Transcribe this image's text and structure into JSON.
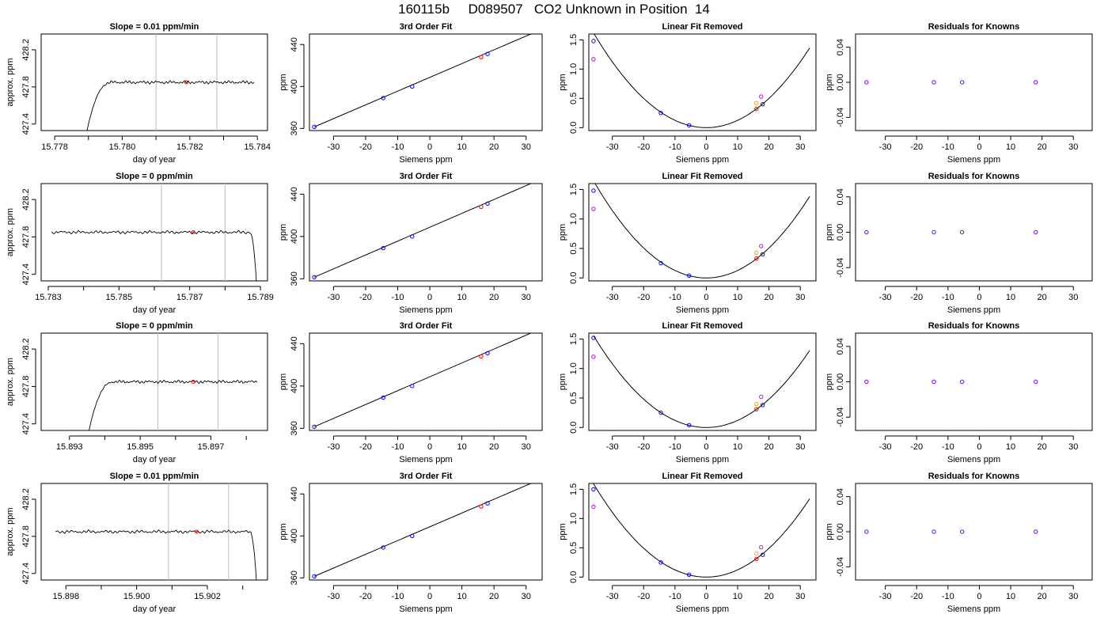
{
  "title": "160115b     D089507   CO2 Unknown in Position  14",
  "chart_data": [
    {
      "type": "line",
      "row": 1,
      "col": 1,
      "title": "Slope =  0.01  ppm/min",
      "xlabel": "day of year",
      "ylabel": "approx. ppm",
      "xlim": [
        15.7776,
        15.7843
      ],
      "ylim": [
        427.33,
        428.37
      ],
      "xticks": [
        15.778,
        15.78,
        15.782,
        15.784
      ],
      "xtick_labels": [
        "15.778",
        "15.780",
        "15.782",
        "15.784"
      ],
      "yticks": [
        427.4,
        427.8,
        428.2
      ],
      "ytick_labels": [
        "427.4",
        "427.8",
        "428.2"
      ],
      "vlines": [
        15.781,
        15.7828
      ],
      "mark": {
        "x": 15.7819,
        "y": 427.85,
        "color": "#ff0000"
      },
      "trace": {
        "x0": 15.7789,
        "x1": 15.7839,
        "rise": "start",
        "base": 427.85
      }
    },
    {
      "type": "line",
      "row": 2,
      "col": 1,
      "title": "Slope =  0  ppm/min",
      "xlabel": "day of year",
      "ylabel": "approx. ppm",
      "xlim": [
        15.7828,
        15.7892
      ],
      "ylim": [
        427.33,
        428.37
      ],
      "xticks": [
        15.783,
        15.785,
        15.787,
        15.789
      ],
      "xtick_labels": [
        "15.783",
        "15.785",
        "15.787",
        "15.789"
      ],
      "yticks": [
        427.4,
        427.8,
        428.2
      ],
      "ytick_labels": [
        "427.4",
        "427.8",
        "428.2"
      ],
      "vlines": [
        15.7862,
        15.788
      ],
      "mark": {
        "x": 15.7871,
        "y": 427.85,
        "color": "#ff0000"
      },
      "trace": {
        "x0": 15.7831,
        "x1": 15.7889,
        "rise": "end",
        "base": 427.85
      }
    },
    {
      "type": "line",
      "row": 3,
      "col": 1,
      "title": "Slope =  0  ppm/min",
      "xlabel": "day of year",
      "ylabel": "approx. ppm",
      "xlim": [
        15.8922,
        15.8986
      ],
      "ylim": [
        427.33,
        428.37
      ],
      "xticks": [
        15.893,
        15.895,
        15.897
      ],
      "xtick_labels": [
        "15.893",
        "15.895",
        "15.897"
      ],
      "yticks": [
        427.4,
        427.8,
        428.2
      ],
      "ytick_labels": [
        "427.4",
        "427.8",
        "428.2"
      ],
      "vlines": [
        15.8955,
        15.8972
      ],
      "mark": {
        "x": 15.8965,
        "y": 427.85,
        "color": "#ff0000"
      },
      "trace": {
        "x0": 15.8935,
        "x1": 15.8983,
        "rise": "start",
        "base": 427.85
      }
    },
    {
      "type": "line",
      "row": 4,
      "col": 1,
      "title": "Slope =  0.01  ppm/min",
      "xlabel": "day of year",
      "ylabel": "approx. ppm",
      "xlim": [
        15.8973,
        15.9037
      ],
      "ylim": [
        427.33,
        428.37
      ],
      "xticks": [
        15.898,
        15.9,
        15.902
      ],
      "xtick_labels": [
        "15.898",
        "15.900",
        "15.902"
      ],
      "yticks": [
        427.4,
        427.8,
        428.2
      ],
      "ytick_labels": [
        "427.4",
        "427.8",
        "428.2"
      ],
      "vlines": [
        15.9009,
        15.9026
      ],
      "mark": {
        "x": 15.9017,
        "y": 427.85,
        "color": "#ff0000"
      },
      "trace": {
        "x0": 15.8977,
        "x1": 15.9034,
        "rise": "end",
        "base": 427.85
      }
    },
    {
      "type": "line",
      "row": 1,
      "col": 2,
      "title": "3rd Order Fit",
      "xlabel": "Siemens ppm",
      "ylabel": "ppm",
      "xlim": [
        -37.5,
        35
      ],
      "ylim": [
        358,
        450
      ],
      "xticks": [
        -30,
        -20,
        -10,
        0,
        10,
        20,
        30
      ],
      "xtick_labels": [
        "-30",
        "-20",
        "-10",
        "0",
        "10",
        "20",
        "30"
      ],
      "yticks": [
        360,
        400,
        440
      ],
      "ytick_labels": [
        "360",
        "400",
        "440"
      ],
      "line": {
        "x0": -36,
        "y0": 361.5,
        "x1": 33,
        "y1": 452
      },
      "points": [
        {
          "x": -36,
          "y": 361.5,
          "color": "#0000ff"
        },
        {
          "x": -14.5,
          "y": 389,
          "color": "#0000ff"
        },
        {
          "x": -5.5,
          "y": 400,
          "color": "#0000ff"
        },
        {
          "x": 16,
          "y": 428,
          "color": "#ff0000"
        },
        {
          "x": 18,
          "y": 431,
          "color": "#0000ff"
        }
      ]
    },
    {
      "type": "line",
      "row": 2,
      "col": 2,
      "title": "3rd Order Fit",
      "xlabel": "Siemens ppm",
      "ylabel": "ppm",
      "xlim": [
        -37.5,
        35
      ],
      "ylim": [
        358,
        450
      ],
      "xticks": [
        -30,
        -20,
        -10,
        0,
        10,
        20,
        30
      ],
      "xtick_labels": [
        "-30",
        "-20",
        "-10",
        "0",
        "10",
        "20",
        "30"
      ],
      "yticks": [
        360,
        400,
        440
      ],
      "ytick_labels": [
        "360",
        "400",
        "440"
      ],
      "line": {
        "x0": -36,
        "y0": 361.5,
        "x1": 33,
        "y1": 452
      },
      "points": [
        {
          "x": -36,
          "y": 361.5,
          "color": "#0000ff"
        },
        {
          "x": -14.5,
          "y": 389,
          "color": "#0000ff"
        },
        {
          "x": -5.5,
          "y": 400,
          "color": "#0000ff"
        },
        {
          "x": 16,
          "y": 428,
          "color": "#ff0000"
        },
        {
          "x": 18,
          "y": 431,
          "color": "#0000ff"
        }
      ]
    },
    {
      "type": "line",
      "row": 3,
      "col": 2,
      "title": "3rd Order Fit",
      "xlabel": "Siemens ppm",
      "ylabel": "ppm",
      "xlim": [
        -37.5,
        35
      ],
      "ylim": [
        358,
        450
      ],
      "xticks": [
        -30,
        -20,
        -10,
        0,
        10,
        20,
        30
      ],
      "xtick_labels": [
        "-30",
        "-20",
        "-10",
        "0",
        "10",
        "20",
        "30"
      ],
      "yticks": [
        360,
        400,
        440
      ],
      "ytick_labels": [
        "360",
        "400",
        "440"
      ],
      "line": {
        "x0": -36,
        "y0": 361.5,
        "x1": 33,
        "y1": 452
      },
      "points": [
        {
          "x": -36,
          "y": 361.5,
          "color": "#0000ff"
        },
        {
          "x": -14.5,
          "y": 389,
          "color": "#0000ff"
        },
        {
          "x": -5.5,
          "y": 400,
          "color": "#0000ff"
        },
        {
          "x": 16,
          "y": 428,
          "color": "#ff0000"
        },
        {
          "x": 18,
          "y": 431,
          "color": "#0000ff"
        }
      ]
    },
    {
      "type": "line",
      "row": 4,
      "col": 2,
      "title": "3rd Order Fit",
      "xlabel": "Siemens ppm",
      "ylabel": "ppm",
      "xlim": [
        -37.5,
        35
      ],
      "ylim": [
        358,
        450
      ],
      "xticks": [
        -30,
        -20,
        -10,
        0,
        10,
        20,
        30
      ],
      "xtick_labels": [
        "-30",
        "-20",
        "-10",
        "0",
        "10",
        "20",
        "30"
      ],
      "yticks": [
        360,
        400,
        440
      ],
      "ytick_labels": [
        "360",
        "400",
        "440"
      ],
      "line": {
        "x0": -36,
        "y0": 361.5,
        "x1": 33,
        "y1": 452
      },
      "points": [
        {
          "x": -36,
          "y": 361.5,
          "color": "#0000ff"
        },
        {
          "x": -14.5,
          "y": 389,
          "color": "#0000ff"
        },
        {
          "x": -5.5,
          "y": 400,
          "color": "#0000ff"
        },
        {
          "x": 16,
          "y": 428,
          "color": "#ff0000"
        },
        {
          "x": 18,
          "y": 431,
          "color": "#0000ff"
        }
      ]
    },
    {
      "type": "line",
      "row": 1,
      "col": 3,
      "title": "Linear Fit Removed",
      "xlabel": "Siemens ppm",
      "ylabel": "ppm",
      "xlim": [
        -37.5,
        35
      ],
      "ylim": [
        -0.05,
        1.6
      ],
      "xticks": [
        -30,
        -20,
        -10,
        0,
        10,
        20,
        30
      ],
      "xtick_labels": [
        "-30",
        "-20",
        "-10",
        "0",
        "10",
        "20",
        "30"
      ],
      "yticks": [
        0,
        0.5,
        1,
        1.5
      ],
      "ytick_labels": [
        "0.0",
        "0.5",
        "1.0",
        "1.5"
      ],
      "curve": {
        "coef": 0.00125,
        "x0": -36,
        "x1": 33
      },
      "points": [
        {
          "x": -36,
          "y": 1.48,
          "color": "#0000ff"
        },
        {
          "x": -36,
          "y": 1.17,
          "color": "#cc00ff"
        },
        {
          "x": -14.5,
          "y": 0.25,
          "color": "#0000ff"
        },
        {
          "x": -5.5,
          "y": 0.04,
          "color": "#0000ff"
        },
        {
          "x": 16,
          "y": 0.42,
          "color": "#ffa500"
        },
        {
          "x": 16,
          "y": 0.32,
          "color": "#ff0000"
        },
        {
          "x": 17.5,
          "y": 0.53,
          "color": "#cc00ff"
        },
        {
          "x": 18,
          "y": 0.4,
          "color": "#0000ff"
        }
      ]
    },
    {
      "type": "line",
      "row": 2,
      "col": 3,
      "title": "Linear Fit Removed",
      "xlabel": "Siemens ppm",
      "ylabel": "ppm",
      "xlim": [
        -37.5,
        35
      ],
      "ylim": [
        -0.05,
        1.6
      ],
      "xticks": [
        -30,
        -20,
        -10,
        0,
        10,
        20,
        30
      ],
      "xtick_labels": [
        "-30",
        "-20",
        "-10",
        "0",
        "10",
        "20",
        "30"
      ],
      "yticks": [
        0,
        0.5,
        1,
        1.5
      ],
      "ytick_labels": [
        "0.0",
        "0.5",
        "1.0",
        "1.5"
      ],
      "curve": {
        "coef": 0.00127,
        "x0": -36,
        "x1": 33
      },
      "points": [
        {
          "x": -36,
          "y": 1.48,
          "color": "#0000ff"
        },
        {
          "x": -36,
          "y": 1.17,
          "color": "#cc00ff"
        },
        {
          "x": -14.5,
          "y": 0.25,
          "color": "#0000ff"
        },
        {
          "x": -5.5,
          "y": 0.04,
          "color": "#0000ff"
        },
        {
          "x": 16,
          "y": 0.43,
          "color": "#ffa500"
        },
        {
          "x": 16,
          "y": 0.33,
          "color": "#ff0000"
        },
        {
          "x": 17.5,
          "y": 0.54,
          "color": "#cc00ff"
        },
        {
          "x": 18,
          "y": 0.4,
          "color": "#0000ff"
        }
      ]
    },
    {
      "type": "line",
      "row": 3,
      "col": 3,
      "title": "Linear Fit Removed",
      "xlabel": "Siemens ppm",
      "ylabel": "ppm",
      "xlim": [
        -37.5,
        35
      ],
      "ylim": [
        -0.05,
        1.6
      ],
      "xticks": [
        -30,
        -20,
        -10,
        0,
        10,
        20,
        30
      ],
      "xtick_labels": [
        "-30",
        "-20",
        "-10",
        "0",
        "10",
        "20",
        "30"
      ],
      "yticks": [
        0,
        0.5,
        1,
        1.5
      ],
      "ytick_labels": [
        "0.0",
        "0.5",
        "1.0",
        "1.5"
      ],
      "curve": {
        "coef": 0.0012,
        "x0": -36,
        "x1": 33
      },
      "points": [
        {
          "x": -36,
          "y": 1.52,
          "color": "#0000ff"
        },
        {
          "x": -36,
          "y": 1.2,
          "color": "#cc00ff"
        },
        {
          "x": -14.5,
          "y": 0.25,
          "color": "#0000ff"
        },
        {
          "x": -5.5,
          "y": 0.04,
          "color": "#0000ff"
        },
        {
          "x": 16,
          "y": 0.4,
          "color": "#ffa500"
        },
        {
          "x": 16,
          "y": 0.31,
          "color": "#ff0000"
        },
        {
          "x": 17.5,
          "y": 0.52,
          "color": "#cc00ff"
        },
        {
          "x": 18,
          "y": 0.38,
          "color": "#0000ff"
        }
      ]
    },
    {
      "type": "line",
      "row": 4,
      "col": 3,
      "title": "Linear Fit Removed",
      "xlabel": "Siemens ppm",
      "ylabel": "ppm",
      "xlim": [
        -37.5,
        35
      ],
      "ylim": [
        -0.05,
        1.6
      ],
      "xticks": [
        -30,
        -20,
        -10,
        0,
        10,
        20,
        30
      ],
      "xtick_labels": [
        "-30",
        "-20",
        "-10",
        "0",
        "10",
        "20",
        "30"
      ],
      "yticks": [
        0,
        0.5,
        1,
        1.5
      ],
      "ytick_labels": [
        "0.0",
        "0.5",
        "1.0",
        "1.5"
      ],
      "curve": {
        "coef": 0.00123,
        "x0": -36,
        "x1": 33
      },
      "points": [
        {
          "x": -36,
          "y": 1.5,
          "color": "#0000ff"
        },
        {
          "x": -36,
          "y": 1.2,
          "color": "#cc00ff"
        },
        {
          "x": -14.5,
          "y": 0.25,
          "color": "#0000ff"
        },
        {
          "x": -5.5,
          "y": 0.04,
          "color": "#0000ff"
        },
        {
          "x": 16,
          "y": 0.4,
          "color": "#ffa500"
        },
        {
          "x": 16,
          "y": 0.31,
          "color": "#ff0000"
        },
        {
          "x": 17.5,
          "y": 0.51,
          "color": "#cc00ff"
        },
        {
          "x": 18,
          "y": 0.38,
          "color": "#0000ff"
        }
      ]
    },
    {
      "type": "scatter",
      "row": 1,
      "col": 4,
      "title": "Residuals for Knowns",
      "xlabel": "Siemens ppm",
      "ylabel": "ppm",
      "xlim": [
        -39.5,
        36
      ],
      "ylim": [
        -0.055,
        0.055
      ],
      "xticks": [
        -30,
        -20,
        -10,
        0,
        10,
        20,
        30
      ],
      "xtick_labels": [
        "-30",
        "-20",
        "-10",
        "0",
        "10",
        "20",
        "30"
      ],
      "yticks": [
        -0.04,
        0,
        0.04
      ],
      "ytick_labels": [
        "-0.04",
        "0.00",
        "0.04"
      ],
      "points": [
        {
          "x": -36,
          "y": 0,
          "color": "#6600ff"
        },
        {
          "x": -14.5,
          "y": 0,
          "color": "#6600ff"
        },
        {
          "x": -5.5,
          "y": 0,
          "color": "#6600ff"
        },
        {
          "x": 18,
          "y": 0,
          "color": "#6600ff"
        }
      ]
    },
    {
      "type": "scatter",
      "row": 2,
      "col": 4,
      "title": "Residuals for Knowns",
      "xlabel": "Siemens ppm",
      "ylabel": "ppm",
      "xlim": [
        -39.5,
        36
      ],
      "ylim": [
        -0.055,
        0.055
      ],
      "xticks": [
        -30,
        -20,
        -10,
        0,
        10,
        20,
        30
      ],
      "xtick_labels": [
        "-30",
        "-20",
        "-10",
        "0",
        "10",
        "20",
        "30"
      ],
      "yticks": [
        -0.04,
        0,
        0.04
      ],
      "ytick_labels": [
        "-0.04",
        "0.00",
        "0.04"
      ],
      "points": [
        {
          "x": -36,
          "y": 0,
          "color": "#6600ff"
        },
        {
          "x": -14.5,
          "y": 0,
          "color": "#6600ff"
        },
        {
          "x": -5.5,
          "y": 0,
          "color": "#6600ff"
        },
        {
          "x": 18,
          "y": 0,
          "color": "#6600ff"
        }
      ]
    },
    {
      "type": "scatter",
      "row": 3,
      "col": 4,
      "title": "Residuals for Knowns",
      "xlabel": "Siemens ppm",
      "ylabel": "ppm",
      "xlim": [
        -39.5,
        36
      ],
      "ylim": [
        -0.055,
        0.055
      ],
      "xticks": [
        -30,
        -20,
        -10,
        0,
        10,
        20,
        30
      ],
      "xtick_labels": [
        "-30",
        "-20",
        "-10",
        "0",
        "10",
        "20",
        "30"
      ],
      "yticks": [
        -0.04,
        0,
        0.04
      ],
      "ytick_labels": [
        "-0.04",
        "0.00",
        "0.04"
      ],
      "points": [
        {
          "x": -36,
          "y": 0,
          "color": "#6600ff"
        },
        {
          "x": -14.5,
          "y": 0,
          "color": "#6600ff"
        },
        {
          "x": -5.5,
          "y": 0,
          "color": "#6600ff"
        },
        {
          "x": 18,
          "y": 0,
          "color": "#6600ff"
        }
      ]
    },
    {
      "type": "scatter",
      "row": 4,
      "col": 4,
      "title": "Residuals for Knowns",
      "xlabel": "Siemens ppm",
      "ylabel": "ppm",
      "xlim": [
        -39.5,
        36
      ],
      "ylim": [
        -0.055,
        0.055
      ],
      "xticks": [
        -30,
        -20,
        -10,
        0,
        10,
        20,
        30
      ],
      "xtick_labels": [
        "-30",
        "-20",
        "-10",
        "0",
        "10",
        "20",
        "30"
      ],
      "yticks": [
        -0.04,
        0,
        0.04
      ],
      "ytick_labels": [
        "-0.04",
        "0.00",
        "0.04"
      ],
      "points": [
        {
          "x": -36,
          "y": 0,
          "color": "#6600ff"
        },
        {
          "x": -14.5,
          "y": 0,
          "color": "#6600ff"
        },
        {
          "x": -5.5,
          "y": 0,
          "color": "#6600ff"
        },
        {
          "x": 18,
          "y": 0,
          "color": "#6600ff"
        }
      ]
    }
  ]
}
